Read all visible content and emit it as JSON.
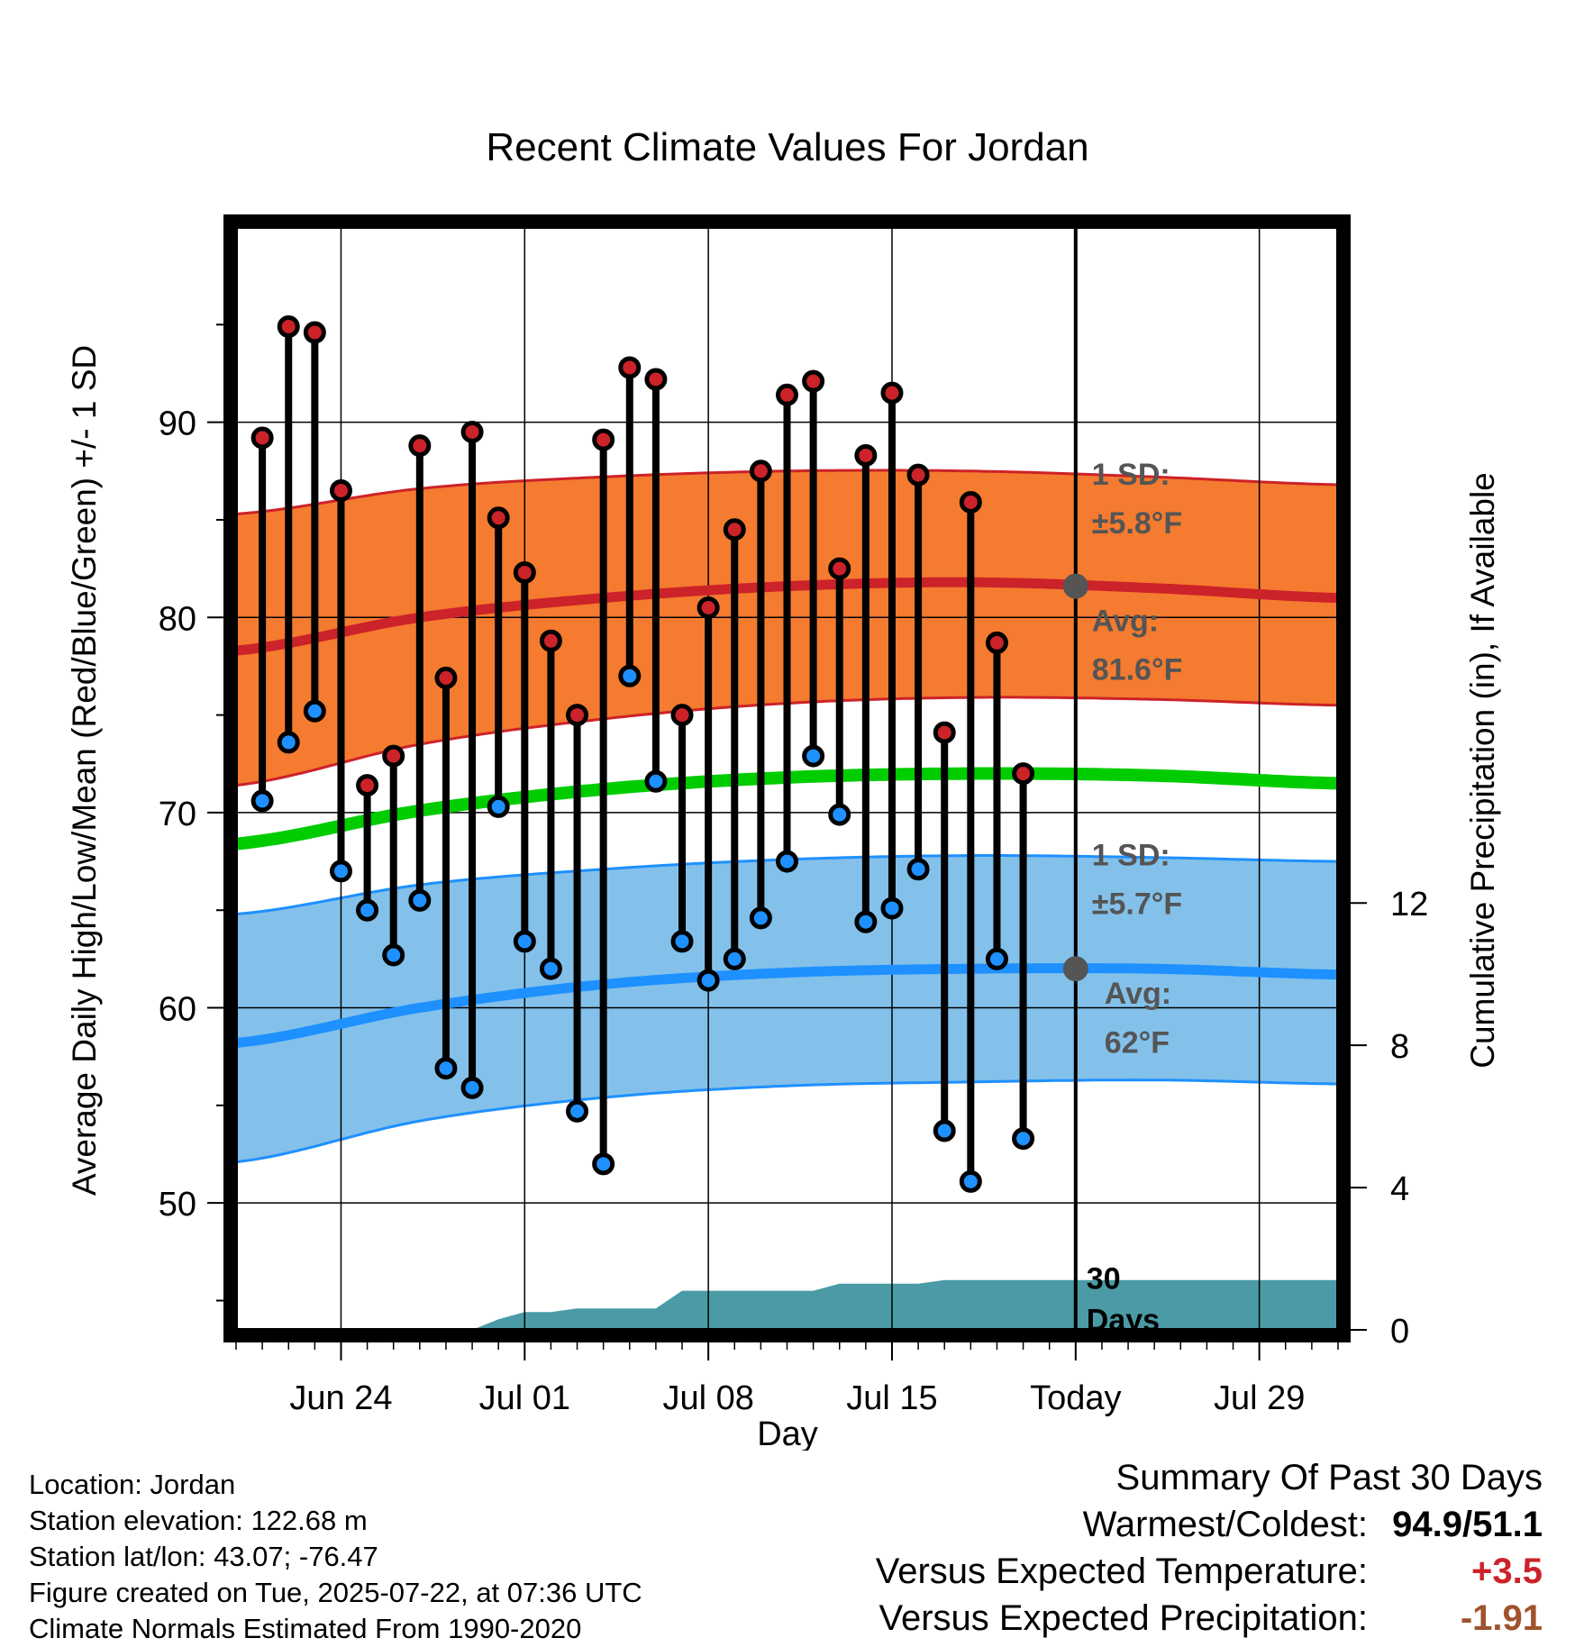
{
  "chart_data": {
    "type": "line",
    "title": "Recent Climate Values For Jordan",
    "xlabel": "Day",
    "ylabel_left": "Average Daily High/Low/Mean (Red/Blue/Green) +/- 1 SD",
    "ylabel_right": "Cumulative Precipitation (in), If Available",
    "ylim_left": [
      43.5,
      100
    ],
    "ylim_right": [
      0,
      31
    ],
    "left_ticks": [
      50,
      60,
      70,
      80,
      90
    ],
    "right_ticks": [
      0,
      4,
      8,
      12
    ],
    "x_start": "2025-06-20",
    "x_end": "2025-08-01",
    "x_ticks": [
      {
        "date": "2025-06-24",
        "label": "Jun 24"
      },
      {
        "date": "2025-07-01",
        "label": "Jul 01"
      },
      {
        "date": "2025-07-08",
        "label": "Jul 08"
      },
      {
        "date": "2025-07-15",
        "label": "Jul 15"
      },
      {
        "date": "2025-07-22",
        "label": "Today"
      },
      {
        "date": "2025-07-29",
        "label": "Jul 29"
      }
    ],
    "today": "2025-07-22",
    "window_label_line1": "30",
    "window_label_line2": "Days",
    "grid": true,
    "observed": {
      "dates": [
        "2025-06-21",
        "2025-06-22",
        "2025-06-23",
        "2025-06-24",
        "2025-06-25",
        "2025-06-26",
        "2025-06-27",
        "2025-06-28",
        "2025-06-29",
        "2025-06-30",
        "2025-07-01",
        "2025-07-02",
        "2025-07-03",
        "2025-07-04",
        "2025-07-05",
        "2025-07-06",
        "2025-07-07",
        "2025-07-08",
        "2025-07-09",
        "2025-07-10",
        "2025-07-11",
        "2025-07-12",
        "2025-07-13",
        "2025-07-14",
        "2025-07-15",
        "2025-07-16",
        "2025-07-17",
        "2025-07-18",
        "2025-07-19",
        "2025-07-20",
        "2025-07-21"
      ],
      "highs": [
        89.2,
        94.9,
        94.6,
        86.5,
        71.4,
        72.9,
        88.8,
        76.9,
        89.5,
        85.1,
        82.3,
        78.8,
        75.0,
        89.1,
        92.8,
        92.2,
        75.0,
        80.5,
        84.5,
        87.5,
        91.4,
        92.1,
        82.5,
        88.3,
        91.5,
        87.3,
        74.1,
        85.9,
        78.7,
        72.0,
        null
      ],
      "lows": [
        70.6,
        73.6,
        75.2,
        67.0,
        65.0,
        62.7,
        65.5,
        56.9,
        55.9,
        70.3,
        63.4,
        62.0,
        54.7,
        52.0,
        77.0,
        71.6,
        63.4,
        61.4,
        62.5,
        64.6,
        67.5,
        72.9,
        69.9,
        64.4,
        65.1,
        67.1,
        53.7,
        51.1,
        62.5,
        53.3,
        null
      ],
      "high_color": "#cc2229",
      "low_color": "#1e90ff"
    },
    "normals": {
      "dates": [
        "2025-06-20",
        "2025-06-27",
        "2025-07-04",
        "2025-07-11",
        "2025-07-18",
        "2025-07-25",
        "2025-08-01"
      ],
      "high_avg": [
        78.3,
        80.0,
        81.0,
        81.6,
        81.8,
        81.5,
        81.0
      ],
      "high_upper": [
        85.3,
        86.6,
        87.2,
        87.5,
        87.5,
        87.2,
        86.8
      ],
      "high_lower": [
        71.4,
        73.5,
        74.8,
        75.6,
        75.9,
        75.8,
        75.5
      ],
      "mean_avg": [
        68.4,
        70.1,
        71.2,
        71.8,
        72.0,
        71.9,
        71.5
      ],
      "low_avg": [
        58.2,
        60.0,
        61.2,
        61.8,
        62.0,
        62.0,
        61.7
      ],
      "low_upper": [
        64.8,
        66.3,
        67.1,
        67.6,
        67.8,
        67.7,
        67.5
      ],
      "low_lower": [
        52.1,
        54.2,
        55.4,
        56.0,
        56.2,
        56.3,
        56.1
      ],
      "high_band_color": "#f47b2f",
      "high_line_color": "#cc2229",
      "mean_line_color": "#00cc00",
      "low_band_color": "#83c1ea",
      "low_line_color": "#1e90ff"
    },
    "annotations": {
      "high_sd_title": "1 SD:",
      "high_sd_value": "±5.8°F",
      "high_avg_title": "Avg:",
      "high_avg_value": "81.6°F",
      "low_sd_title": "1 SD:",
      "low_sd_value": "±5.7°F",
      "low_avg_title": "Avg:",
      "low_avg_value": "62°F",
      "today_high_avg": 81.6,
      "today_low_avg": 62.0,
      "annotation_color": "#555555"
    },
    "precipitation": {
      "dates": [
        "2025-06-20",
        "2025-06-28",
        "2025-06-29",
        "2025-06-30",
        "2025-07-01",
        "2025-07-02",
        "2025-07-03",
        "2025-07-04",
        "2025-07-05",
        "2025-07-06",
        "2025-07-07",
        "2025-07-11",
        "2025-07-12",
        "2025-07-13",
        "2025-07-14",
        "2025-07-15",
        "2025-07-16",
        "2025-07-17",
        "2025-07-18",
        "2025-07-19",
        "2025-07-20",
        "2025-07-21",
        "2025-08-01"
      ],
      "cumulative": [
        0,
        0,
        0,
        0.3,
        0.5,
        0.5,
        0.6,
        0.6,
        0.6,
        0.6,
        1.1,
        1.1,
        1.1,
        1.3,
        1.3,
        1.3,
        1.3,
        1.4,
        1.4,
        1.4,
        1.4,
        1.4,
        1.4
      ],
      "color": "#4a9ba6"
    }
  },
  "footer_left": {
    "location": "Location: Jordan",
    "elevation": "Station elevation: 122.68 m",
    "latlon": "Station lat/lon: 43.07; -76.47",
    "created": "Figure created on Tue, 2025-07-22, at 07:36 UTC",
    "normals": "Climate Normals Estimated From 1990-2020"
  },
  "summary": {
    "title": "Summary Of Past 30 Days",
    "warm_cold_label": "Warmest/Coldest:",
    "warm_cold_value": "94.9/51.1",
    "temp_label": "Versus Expected Temperature:",
    "temp_value": "+3.5",
    "temp_color": "#cc2229",
    "precip_label": "Versus Expected Precipitation:",
    "precip_value": "-1.91",
    "precip_color": "#a0522d"
  }
}
